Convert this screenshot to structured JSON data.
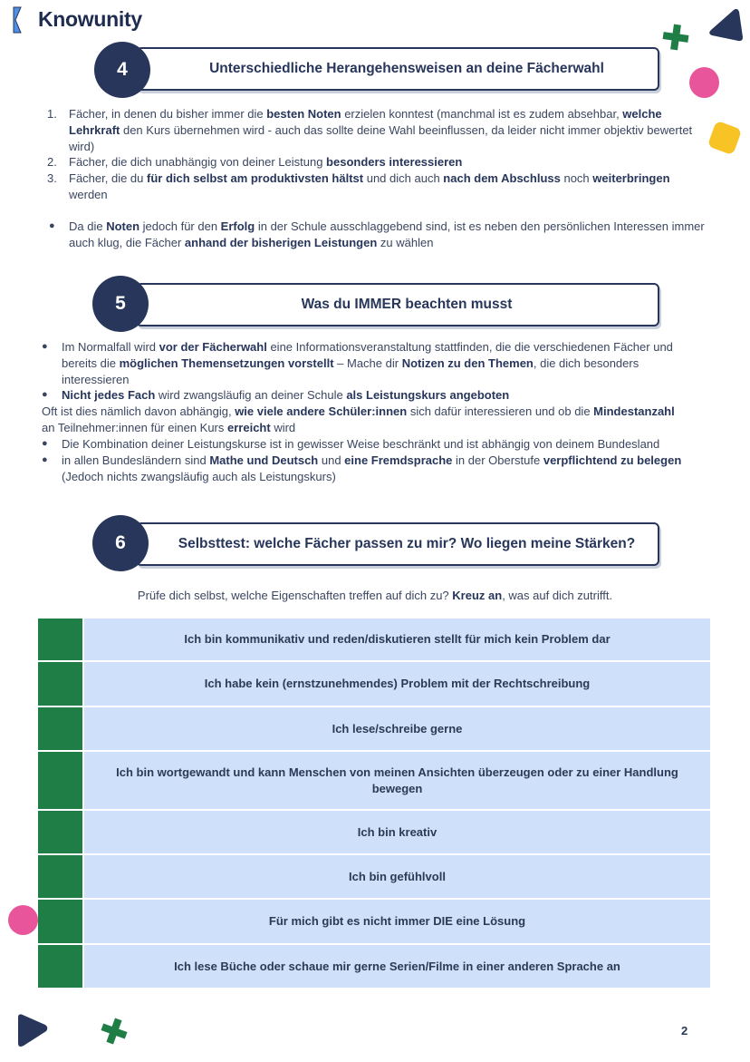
{
  "brand": {
    "name": "Knowunity",
    "colors": {
      "navy": "#27365a",
      "green": "#1e7e45",
      "pink": "#e8559b",
      "yellow": "#f7c325",
      "blue": "#4e8fe8",
      "cell": "#cfe0fb"
    }
  },
  "sections": [
    {
      "number": "4",
      "title": "Unterschiedliche Herangehensweisen an deine Fächerwahl",
      "ordered": [
        {
          "marker": "1.",
          "segments": [
            {
              "t": "Fächer, in denen du bisher immer die "
            },
            {
              "t": "besten Noten",
              "b": true
            },
            {
              "t": " erzielen konntest (manchmal ist es zudem absehbar, "
            },
            {
              "t": "welche Lehrkraft",
              "b": true
            },
            {
              "t": " den Kurs übernehmen wird - auch das sollte deine Wahl beeinflussen, da leider nicht immer objektiv bewertet wird)"
            }
          ]
        },
        {
          "marker": "2.",
          "segments": [
            {
              "t": "Fächer, die dich unabhängig von deiner Leistung "
            },
            {
              "t": "besonders interessieren",
              "b": true
            }
          ]
        },
        {
          "marker": "3.",
          "segments": [
            {
              "t": "Fächer, die du "
            },
            {
              "t": "für dich selbst am produktivsten hältst",
              "b": true
            },
            {
              "t": " und dich auch "
            },
            {
              "t": "nach dem Abschluss",
              "b": true
            },
            {
              "t": " noch "
            },
            {
              "t": "weiterbringen",
              "b": true
            },
            {
              "t": " werden"
            }
          ]
        }
      ],
      "bullets": [
        {
          "segments": [
            {
              "t": "Da die "
            },
            {
              "t": "Noten",
              "b": true
            },
            {
              "t": " jedoch für den "
            },
            {
              "t": "Erfolg",
              "b": true
            },
            {
              "t": " in der Schule ausschlaggebend sind, ist es neben den persönlichen Interessen immer auch klug, die Fächer "
            },
            {
              "t": "anhand der bisherigen Leistungen",
              "b": true
            },
            {
              "t": " zu wählen"
            }
          ]
        }
      ]
    },
    {
      "number": "5",
      "title": "Was du IMMER beachten musst",
      "bullets_a": [
        {
          "segments": [
            {
              "t": "Im Normalfall wird "
            },
            {
              "t": "vor der Fächerwahl",
              "b": true
            },
            {
              "t": " eine Informationsveranstaltung stattfinden, die die verschiedenen Fächer und bereits die "
            },
            {
              "t": "möglichen Themensetzungen vorstellt",
              "b": true
            },
            {
              "t": " – Mache dir "
            },
            {
              "t": "Notizen zu den Themen",
              "b": true
            },
            {
              "t": ", die dich besonders interessieren"
            }
          ]
        },
        {
          "segments": [
            {
              "t": "Nicht jedes Fach",
              "b": true
            },
            {
              "t": " wird zwangsläufig an deiner Schule "
            },
            {
              "t": "als Leistungskurs angeboten",
              "b": true
            }
          ]
        }
      ],
      "paragraph": {
        "segments": [
          {
            "t": "Oft ist dies nämlich davon abhängig, "
          },
          {
            "t": "wie viele andere Schüler:innen",
            "b": true
          },
          {
            "t": " sich dafür interessieren und ob die "
          },
          {
            "t": "Mindestanzahl",
            "b": true
          },
          {
            "t": " an Teilnehmer:innen für einen Kurs "
          },
          {
            "t": "erreicht",
            "b": true
          },
          {
            "t": " wird"
          }
        ]
      },
      "bullets_b": [
        {
          "segments": [
            {
              "t": "Die Kombination deiner Leistungskurse ist in gewisser Weise beschränkt und ist abhängig von deinem Bundesland"
            }
          ]
        },
        {
          "segments": [
            {
              "t": " in allen Bundesländern sind "
            },
            {
              "t": "Mathe und Deutsch",
              "b": true
            },
            {
              "t": " und "
            },
            {
              "t": "eine Fremdsprache",
              "b": true
            },
            {
              "t": " in der Oberstufe "
            },
            {
              "t": "verpflichtend zu belegen",
              "b": true
            },
            {
              "t": " (Jedoch nichts zwangsläufig auch als Leistungskurs)"
            }
          ]
        }
      ]
    },
    {
      "number": "6",
      "title": "Selbsttest: welche Fächer passen zu mir? Wo liegen meine Stärken?",
      "intro": {
        "segments": [
          {
            "t": "Prüfe dich selbst, welche Eigenschaften treffen auf dich zu? "
          },
          {
            "t": "Kreuz an",
            "b": true
          },
          {
            "t": ", was auf dich zutrifft."
          }
        ]
      },
      "checklist": [
        "Ich bin kommunikativ und reden/diskutieren stellt für mich kein Problem dar",
        "Ich habe kein (ernstzunehmendes) Problem mit der Rechtschreibung",
        "Ich lese/schreibe gerne",
        "Ich bin wortgewandt und kann Menschen von meinen Ansichten überzeugen oder zu einer Handlung bewegen",
        "Ich bin kreativ",
        "Ich bin gefühlvoll",
        "Für mich gibt es nicht immer DIE eine Lösung",
        "Ich lese Büche oder schaue mir gerne Serien/Filme in einer anderen Sprache an"
      ]
    }
  ],
  "page_number": "2"
}
